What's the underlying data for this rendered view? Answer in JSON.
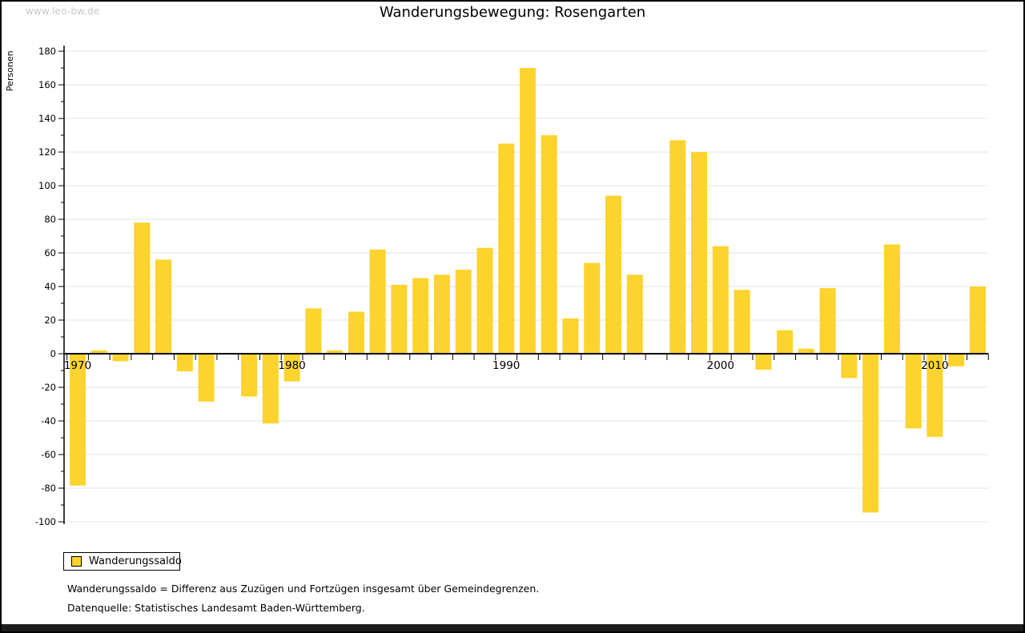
{
  "header": {
    "watermark": "www.leo-bw.de",
    "title": "Wanderungsbewegung: Rosengarten"
  },
  "chart_data": {
    "type": "bar",
    "title": "Wanderungsbewegung: Rosengarten",
    "ylabel": "Personen",
    "series_name": "Wanderungssaldo",
    "bar_color": "#fdd32d",
    "grid": true,
    "grid_color": "#e3e3e3",
    "ylim": [
      -100,
      180
    ],
    "ytick_step": 20,
    "xtick_labels": [
      "1970",
      "1980",
      "1990",
      "2000",
      "2010"
    ],
    "legend_position": "bottom-left",
    "categories": [
      "1970",
      "1971",
      "1972",
      "1973",
      "1974",
      "1975",
      "1976",
      "1977",
      "1978",
      "1979",
      "1980",
      "1981",
      "1982",
      "1983",
      "1984",
      "1985",
      "1986",
      "1987",
      "1988",
      "1989",
      "1990",
      "1991",
      "1992",
      "1993",
      "1994",
      "1995",
      "1996",
      "1997",
      "1998",
      "1999",
      "2000",
      "2001",
      "2002",
      "2003",
      "2004",
      "2005",
      "2006",
      "2007",
      "2008",
      "2009",
      "2010",
      "2011",
      "2012"
    ],
    "values": [
      -78,
      2,
      -4,
      78,
      56,
      -10,
      -28,
      0,
      -25,
      -41,
      -16,
      27,
      2,
      25,
      62,
      41,
      45,
      47,
      50,
      63,
      125,
      170,
      130,
      21,
      54,
      94,
      47,
      0,
      127,
      120,
      64,
      38,
      -9,
      14,
      3,
      39,
      -14,
      -94,
      65,
      -44,
      -49,
      -7,
      40
    ]
  },
  "legend": {
    "label": "Wanderungssaldo"
  },
  "footnotes": {
    "definition": "Wanderungssaldo = Differenz aus Zuzügen und Fortzügen insgesamt über Gemeindegrenzen.",
    "source": "Datenquelle: Statistisches Landesamt Baden-Württemberg."
  }
}
